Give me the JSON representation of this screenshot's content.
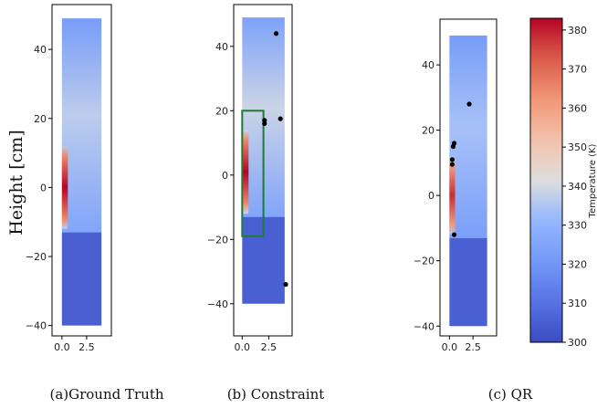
{
  "y_axis_label": "Height [cm]",
  "colorbar": {
    "label": "Temperature (K)",
    "min": 300,
    "max": 383,
    "ticks": [
      300,
      310,
      320,
      330,
      340,
      350,
      360,
      370,
      380
    ],
    "colormap": "coolwarm"
  },
  "chart_data": [
    {
      "type": "heatmap",
      "caption": "(a)Ground Truth",
      "x_ticks": [
        0.0,
        2.5
      ],
      "x_tick_labels": [
        "0.0",
        "2.5"
      ],
      "y_ticks": [
        -40,
        -20,
        0,
        20,
        40
      ],
      "y_tick_labels": [
        "−40",
        "−20",
        "0",
        "20",
        "40"
      ],
      "xlim": [
        -1,
        5
      ],
      "ylim": [
        -43,
        53
      ],
      "field": {
        "x_range": [
          0,
          4
        ],
        "y_range": [
          -40,
          49
        ],
        "lower_region": {
          "y_range": [
            -40,
            -13
          ],
          "temperature": 305
        },
        "upper_region": {
          "y_range": [
            -13,
            49
          ],
          "temperature_bottom": 325,
          "temperature_mid": 337,
          "temperature_top": 322
        },
        "hot_strip": {
          "x_range": [
            0,
            0.6
          ],
          "y_range": [
            -12,
            12
          ],
          "temperature_peak": 383
        }
      },
      "points": [],
      "box": null
    },
    {
      "type": "heatmap",
      "caption": "(b) Constraint",
      "x_ticks": [
        0.0,
        2.5
      ],
      "x_tick_labels": [
        "0.0",
        "2.5"
      ],
      "y_ticks": [
        -40,
        -20,
        0,
        20,
        40
      ],
      "y_tick_labels": [
        "−40",
        "−20",
        "0",
        "20",
        "40"
      ],
      "xlim": [
        -0.8,
        4.7
      ],
      "ylim": [
        -50,
        53
      ],
      "field": {
        "x_range": [
          0,
          4
        ],
        "y_range": [
          -40,
          49
        ],
        "lower_region": {
          "y_range": [
            -40,
            -13
          ],
          "temperature": 305
        },
        "upper_region": {
          "y_range": [
            -13,
            49
          ],
          "temperature_bottom": 325,
          "temperature_mid": 339,
          "temperature_top": 324
        },
        "hot_strip": {
          "x_range": [
            0,
            0.6
          ],
          "y_range": [
            -12,
            14
          ],
          "temperature_peak": 383
        }
      },
      "points": [
        {
          "x": 3.2,
          "y": 44
        },
        {
          "x": 3.6,
          "y": 17.5
        },
        {
          "x": 2.1,
          "y": 17
        },
        {
          "x": 2.1,
          "y": 16
        },
        {
          "x": 4.1,
          "y": -34
        }
      ],
      "box": {
        "x_range": [
          0,
          2
        ],
        "y_range": [
          -19,
          20
        ],
        "color": "#1e7a35"
      }
    },
    {
      "type": "heatmap",
      "caption": "(c) QR",
      "x_ticks": [
        0.0,
        2.5
      ],
      "x_tick_labels": [
        "0.0",
        "2.5"
      ],
      "y_ticks": [
        -40,
        -20,
        0,
        20,
        40
      ],
      "y_tick_labels": [
        "−40",
        "−20",
        "0",
        "20",
        "40"
      ],
      "xlim": [
        -1,
        5
      ],
      "ylim": [
        -43,
        54
      ],
      "field": {
        "x_range": [
          0,
          4
        ],
        "y_range": [
          -40,
          49
        ],
        "lower_region": {
          "y_range": [
            -40,
            -13
          ],
          "temperature": 305
        },
        "upper_region": {
          "y_range": [
            -13,
            49
          ],
          "temperature_bottom": 323,
          "temperature_mid": 334,
          "temperature_top": 322
        },
        "hot_strip": {
          "x_range": [
            0,
            0.6
          ],
          "y_range": [
            -12,
            12
          ],
          "temperature_peak": 378
        }
      },
      "points": [
        {
          "x": 2.1,
          "y": 28
        },
        {
          "x": 0.5,
          "y": 16
        },
        {
          "x": 0.4,
          "y": 15
        },
        {
          "x": 0.3,
          "y": 11
        },
        {
          "x": 0.3,
          "y": 9.5
        },
        {
          "x": 0.5,
          "y": -12
        }
      ],
      "box": null
    }
  ]
}
